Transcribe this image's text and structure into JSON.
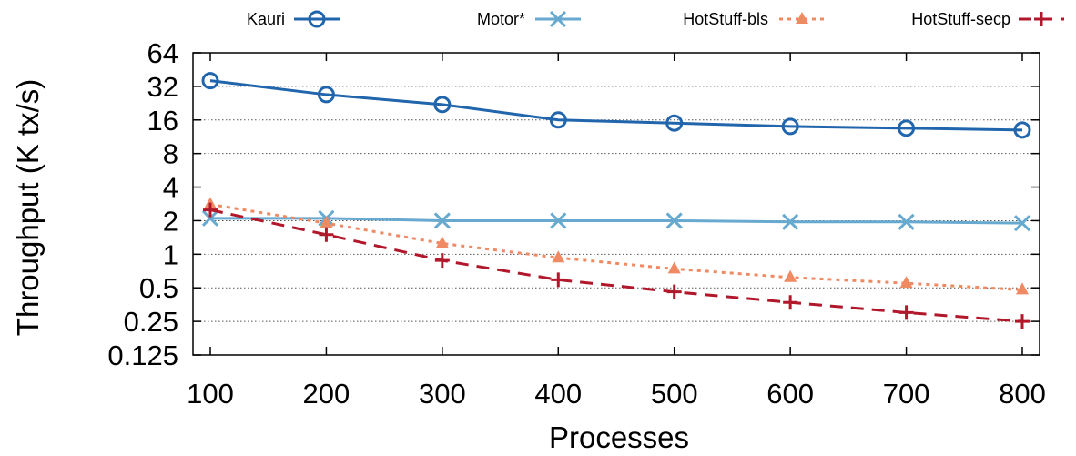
{
  "chart_data": {
    "type": "line",
    "xlabel": "Processes",
    "ylabel": "Throughput (K tx/s)",
    "x": [
      100,
      200,
      300,
      400,
      500,
      600,
      700,
      800
    ],
    "xlim": [
      100,
      800
    ],
    "ylim": [
      0.125,
      64
    ],
    "yscale": "log2",
    "xticks": [
      "100",
      "200",
      "300",
      "400",
      "500",
      "600",
      "700",
      "800"
    ],
    "yticks": [
      {
        "value": 0.125,
        "label": "0.125"
      },
      {
        "value": 0.25,
        "label": "0.25"
      },
      {
        "value": 0.5,
        "label": "0.5"
      },
      {
        "value": 1,
        "label": "1"
      },
      {
        "value": 2,
        "label": "2"
      },
      {
        "value": 4,
        "label": "4"
      },
      {
        "value": 8,
        "label": "8"
      },
      {
        "value": 16,
        "label": "16"
      },
      {
        "value": 32,
        "label": "32"
      },
      {
        "value": 64,
        "label": "64"
      }
    ],
    "grid": "horizontal dotted",
    "legend_position": "top",
    "series": [
      {
        "name": "Kauri",
        "color": "#2166ac",
        "marker": "circle",
        "dash": "solid",
        "values": [
          36,
          27,
          22,
          16,
          15,
          14,
          13.5,
          13
        ]
      },
      {
        "name": "Motor*",
        "color": "#67a9cf",
        "marker": "cross-x",
        "dash": "solid",
        "values": [
          2.1,
          2.1,
          2.0,
          2.0,
          2.0,
          1.95,
          1.95,
          1.9
        ]
      },
      {
        "name": "HotStuff-bls",
        "color": "#ef8a62",
        "marker": "triangle",
        "dash": "dotted",
        "values": [
          2.8,
          1.9,
          1.25,
          0.93,
          0.74,
          0.62,
          0.55,
          0.48
        ]
      },
      {
        "name": "HotStuff-secp",
        "color": "#b2182b",
        "marker": "plus",
        "dash": "dashed",
        "values": [
          2.5,
          1.5,
          0.88,
          0.59,
          0.46,
          0.37,
          0.3,
          0.25
        ]
      }
    ]
  }
}
